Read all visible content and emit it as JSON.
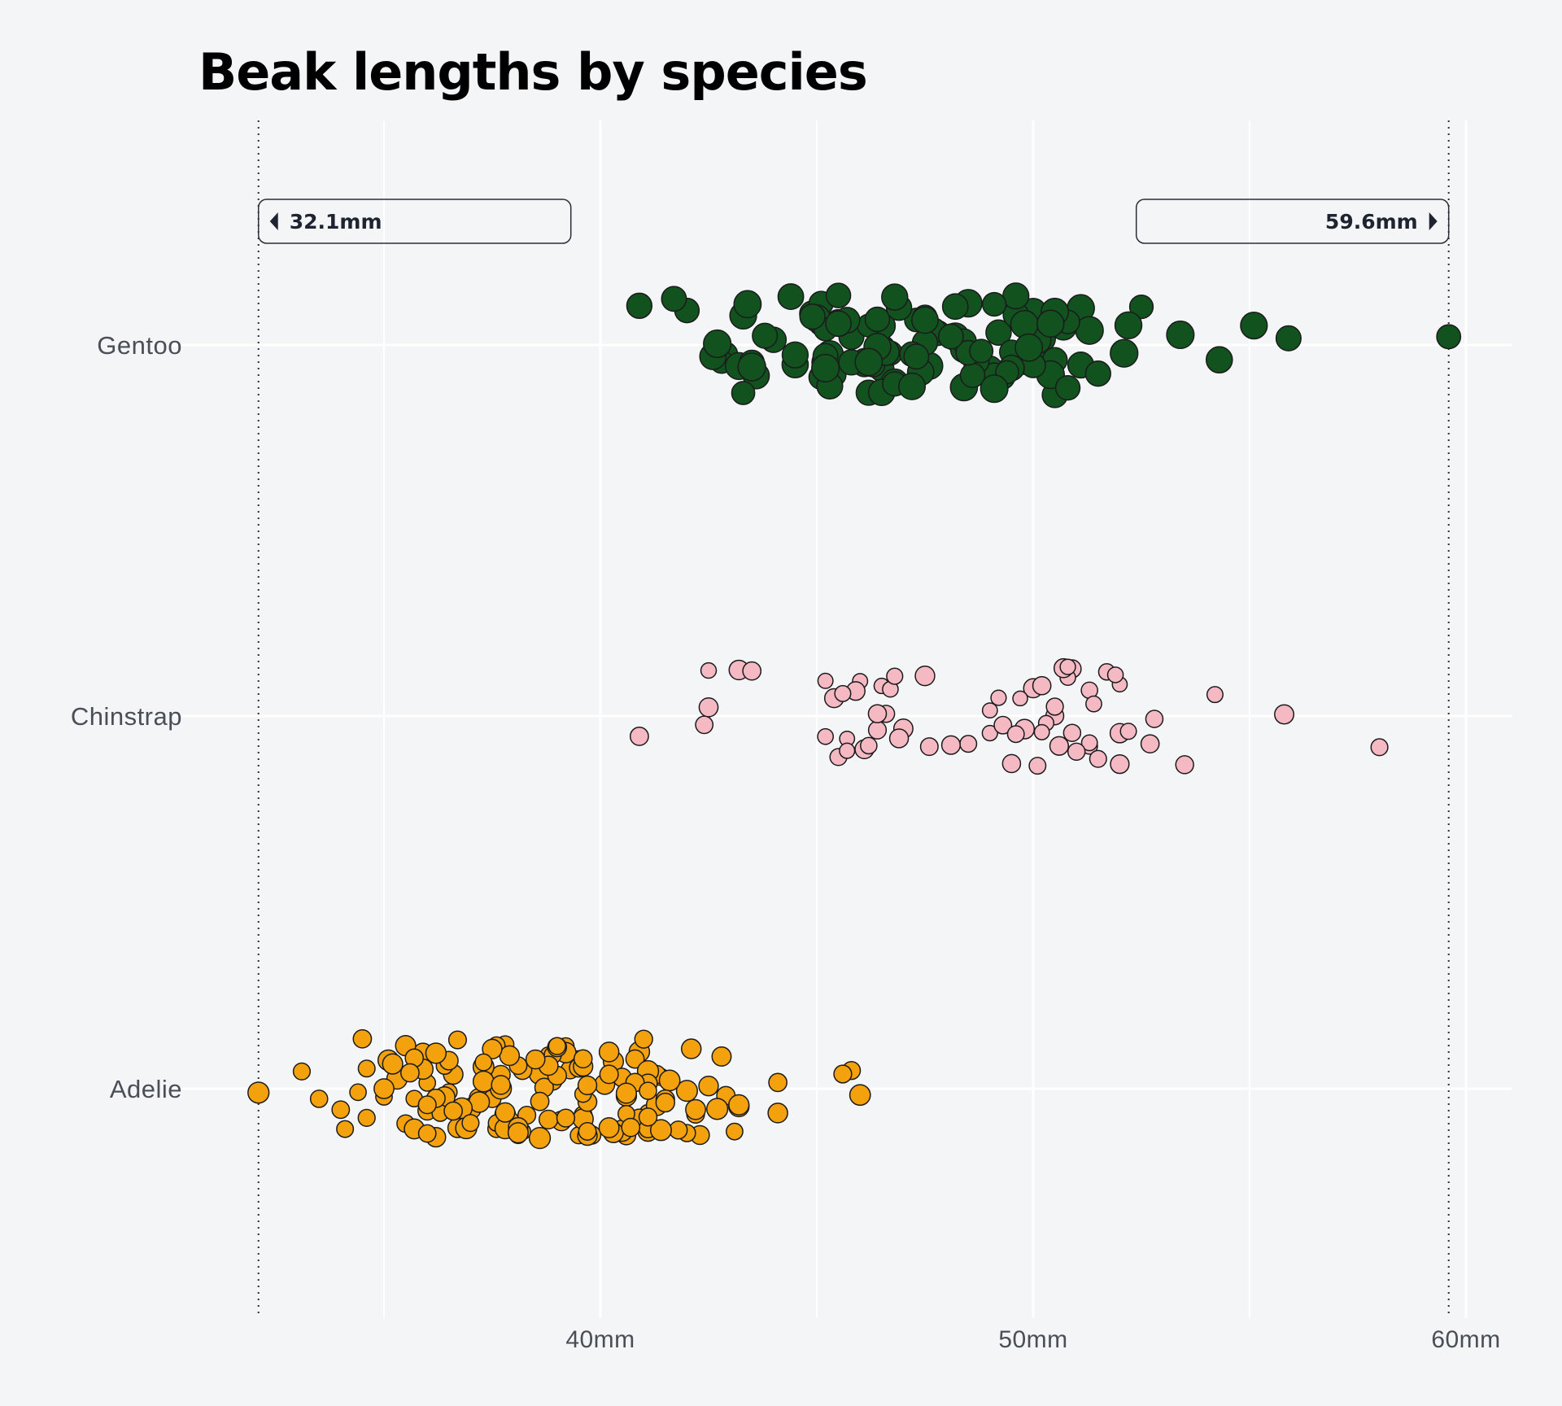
{
  "chart_data": {
    "type": "scatter",
    "title": "Beak lengths by species",
    "xlabel": "",
    "ylabel": "",
    "xlim": [
      32.1,
      61
    ],
    "x_ticks": [
      40,
      50,
      60
    ],
    "x_tick_labels": [
      "40mm",
      "50mm",
      "60mm"
    ],
    "unit": "mm",
    "grid": true,
    "annotations": [
      {
        "label": "32.1mm",
        "value": 32.1,
        "side": "left"
      },
      {
        "label": "59.6mm",
        "value": 59.6,
        "side": "right"
      }
    ],
    "categories": [
      "Gentoo",
      "Chinstrap",
      "Adelie"
    ],
    "series": [
      {
        "name": "Gentoo",
        "color": "#11521f",
        "values": [
          46.1,
          50,
          48.7,
          50,
          47.6,
          46.5,
          45.4,
          46.7,
          43.3,
          46.8,
          40.9,
          49,
          45.5,
          48.4,
          45.8,
          49.3,
          42,
          49.2,
          46.2,
          48.7,
          50.2,
          45.1,
          46.5,
          46.3,
          42.9,
          46.1,
          44.5,
          47.8,
          48.2,
          50,
          47.3,
          42.8,
          45.1,
          59.6,
          49.1,
          48.4,
          42.6,
          44.4,
          44,
          48.7,
          42.7,
          49.6,
          45.3,
          49.6,
          50.5,
          43.6,
          45.5,
          50.5,
          44.9,
          45.2,
          46.6,
          48.5,
          45.1,
          50.1,
          46.5,
          45,
          43.8,
          45.5,
          43.2,
          50.4,
          45.3,
          46.2,
          45.7,
          54.3,
          45.8,
          49.8,
          46.2,
          49.5,
          43.5,
          50.7,
          47.7,
          46.4,
          48.2,
          46.5,
          46.4,
          48.6,
          47.5,
          51.1,
          45.2,
          45.2,
          49.1,
          52.5,
          47.4,
          50,
          44.9,
          50.8,
          43.4,
          51.3,
          47.5,
          52.1,
          47.5,
          52.2,
          45.5,
          49.5,
          44.5,
          50.8,
          49.4,
          46.9,
          48.4,
          51.1,
          48.5,
          55.9,
          47.2,
          49.1,
          47.3,
          46.8,
          41.7,
          53.4,
          43.3,
          48.1,
          50.5,
          49.8,
          43.5,
          51.5,
          46.2,
          55.1,
          44.5,
          48.8,
          47.2,
          46.8,
          50.4,
          45.2,
          49.9
        ]
      },
      {
        "name": "Chinstrap",
        "color": "#f5b9c4",
        "values": [
          46.5,
          50,
          51.3,
          45.4,
          52.7,
          45.2,
          46.1,
          51.3,
          46,
          51.3,
          46.6,
          51.7,
          47,
          52,
          45.9,
          50.5,
          50.3,
          58,
          46.4,
          49.2,
          42.4,
          48.5,
          43.2,
          50.6,
          46.7,
          52,
          50.5,
          49.5,
          46.4,
          52.8,
          40.9,
          54.2,
          42.5,
          51,
          49.7,
          47.5,
          47.6,
          52,
          46.9,
          53.5,
          49,
          46.2,
          50.9,
          45.5,
          50.9,
          50.8,
          50.1,
          49,
          51.5,
          49.8,
          48.1,
          51.4,
          45.7,
          50.7,
          42.5,
          52.2,
          45.2,
          49.3,
          50.2,
          45.6,
          51.9,
          46.8,
          45.7,
          55.8,
          43.5,
          49.6,
          50.8,
          50.2
        ]
      },
      {
        "name": "Adelie",
        "color": "#f4a10e",
        "values": [
          39.1,
          39.5,
          40.3,
          36.7,
          39.3,
          38.9,
          39.2,
          34.1,
          42,
          37.8,
          37.8,
          41.1,
          38.6,
          34.6,
          36.6,
          38.7,
          42.5,
          34.4,
          46,
          37.8,
          37.7,
          35.9,
          38.2,
          38.8,
          35.3,
          40.6,
          40.5,
          37.9,
          40.5,
          39.5,
          37.2,
          39.5,
          40.9,
          36.4,
          39.2,
          38.8,
          42.2,
          37.6,
          39.8,
          36.5,
          40.8,
          36,
          44.1,
          37,
          39.6,
          41.1,
          37.5,
          36,
          42.3,
          39.6,
          40.1,
          35,
          42,
          34.5,
          41.4,
          39,
          40.6,
          36.5,
          37.6,
          35.7,
          41.3,
          37.6,
          41.1,
          36.4,
          41.6,
          35.5,
          41.1,
          35.9,
          41.8,
          33.5,
          39.7,
          39.6,
          45.8,
          35.5,
          42.8,
          40.9,
          37.2,
          36.2,
          42.1,
          34.6,
          42.9,
          36.7,
          35.1,
          37.3,
          41.3,
          36.3,
          36.9,
          38.3,
          38.9,
          35.7,
          41.1,
          34,
          39.6,
          36.2,
          40.8,
          38.1,
          40.3,
          33.1,
          43.2,
          35,
          41,
          37.7,
          37.8,
          37.9,
          39.7,
          38.6,
          38.2,
          38.1,
          43.2,
          38.1,
          45.6,
          39.7,
          42.2,
          39.6,
          42.7,
          38.6,
          37.3,
          35.7,
          41.1,
          36.2,
          37.7,
          40.2,
          41.4,
          35.2,
          40.6,
          38.8,
          41.5,
          39,
          44.1,
          38.5,
          43.1,
          36.8,
          37.5,
          38.1,
          41.1,
          35.6,
          40.2,
          37,
          39.7,
          40.2,
          40.6,
          32.1,
          40.7,
          37.3,
          39,
          39.2,
          36.6,
          36,
          37.8,
          36,
          41.5
        ]
      }
    ]
  }
}
